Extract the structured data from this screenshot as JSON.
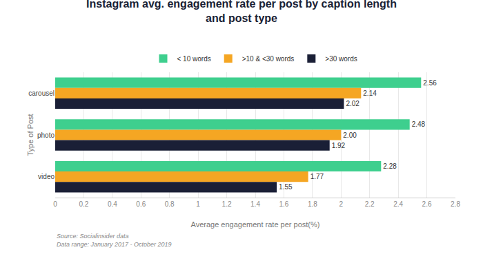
{
  "chart_data": {
    "type": "bar",
    "orientation": "horizontal",
    "title": "Instagram avg. engagement rate per post by caption length\nand post type",
    "xlabel": "Average engagement rate per post(%)",
    "ylabel": "Type of Post",
    "categories": [
      "carousel",
      "photo",
      "video"
    ],
    "series": [
      {
        "name": "< 10 words",
        "color": "#3ecf8e",
        "values": [
          2.56,
          2.48,
          2.28
        ],
        "value_labels": [
          "2.56",
          "2.48",
          "2.28"
        ]
      },
      {
        "name": ">10 & <30 words",
        "color": "#f5a623",
        "values": [
          2.14,
          2.0,
          1.77
        ],
        "value_labels": [
          "2.14",
          "2.00",
          "1.77"
        ]
      },
      {
        "name": ">30 words",
        "color": "#1a1f36",
        "values": [
          2.02,
          1.92,
          1.55
        ],
        "value_labels": [
          "2.02",
          "1.92",
          "1.55"
        ]
      }
    ],
    "xlim": [
      0,
      2.8
    ],
    "xticks": [
      0,
      0.2,
      0.4,
      0.6,
      0.8,
      1,
      1.2,
      1.4,
      1.6,
      1.8,
      2,
      2.2,
      2.4,
      2.6,
      2.8
    ],
    "data_labels": true,
    "grid": true,
    "legend": "top",
    "annotations": [
      "Source: Socialinsider data\nData range: January 2017 - October 2019"
    ]
  }
}
